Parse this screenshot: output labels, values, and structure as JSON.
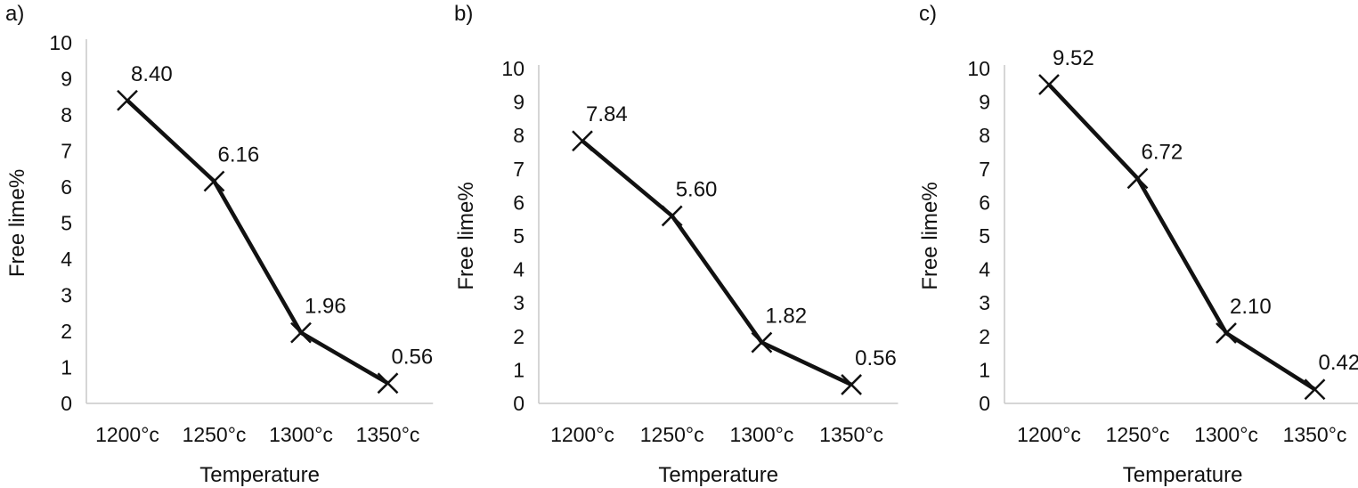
{
  "chart_data": [
    {
      "panel": "a)",
      "type": "line",
      "categories": [
        "1200°c",
        "1250°c",
        "1300°c",
        "1350°c"
      ],
      "values": [
        8.4,
        6.16,
        1.96,
        0.56
      ],
      "labels": [
        "8.40",
        "6.16",
        "1.96",
        "0.56"
      ],
      "xlabel": "Temperature",
      "ylabel": "Free lime%",
      "ylim": [
        0,
        10
      ],
      "yticks": [
        "0",
        "1",
        "2",
        "3",
        "4",
        "5",
        "6",
        "7",
        "8",
        "9",
        "10"
      ],
      "marker": "x",
      "grid": false,
      "line_color": "#111111"
    },
    {
      "panel": "b)",
      "type": "line",
      "categories": [
        "1200°c",
        "1250°c",
        "1300°c",
        "1350°c"
      ],
      "values": [
        7.84,
        5.6,
        1.82,
        0.56
      ],
      "labels": [
        "7.84",
        "5.60",
        "1.82",
        "0.56"
      ],
      "xlabel": "Temperature",
      "ylabel": "Free lime%",
      "ylim": [
        0,
        10
      ],
      "yticks": [
        "0",
        "1",
        "2",
        "3",
        "4",
        "5",
        "6",
        "7",
        "8",
        "9",
        "10"
      ],
      "marker": "x",
      "grid": false,
      "line_color": "#111111"
    },
    {
      "panel": "c)",
      "type": "line",
      "categories": [
        "1200°c",
        "1250°c",
        "1300°c",
        "1350°c"
      ],
      "values": [
        9.52,
        6.72,
        2.1,
        0.42
      ],
      "labels": [
        "9.52",
        "6.72",
        "2.10",
        "0.42"
      ],
      "xlabel": "Temperature",
      "ylabel": "Free lime%",
      "ylim": [
        0,
        10
      ],
      "yticks": [
        "0",
        "1",
        "2",
        "3",
        "4",
        "5",
        "6",
        "7",
        "8",
        "9",
        "10"
      ],
      "marker": "x",
      "grid": false,
      "line_color": "#111111"
    }
  ]
}
